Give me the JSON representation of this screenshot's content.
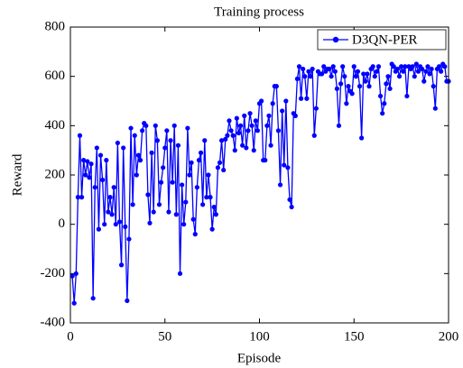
{
  "chart_data": {
    "type": "line",
    "title": "Training process",
    "xlabel": "Episode",
    "ylabel": "Reward",
    "x": [
      1,
      2,
      3,
      4,
      5,
      6,
      7,
      8,
      9,
      10,
      11,
      12,
      13,
      14,
      15,
      16,
      17,
      18,
      19,
      20,
      21,
      22,
      23,
      24,
      25,
      26,
      27,
      28,
      29,
      30,
      31,
      32,
      33,
      34,
      35,
      36,
      37,
      38,
      39,
      40,
      41,
      42,
      43,
      44,
      45,
      46,
      47,
      48,
      49,
      50,
      51,
      52,
      53,
      54,
      55,
      56,
      57,
      58,
      59,
      60,
      61,
      62,
      63,
      64,
      65,
      66,
      67,
      68,
      69,
      70,
      71,
      72,
      73,
      74,
      75,
      76,
      77,
      78,
      79,
      80,
      81,
      82,
      83,
      84,
      85,
      86,
      87,
      88,
      89,
      90,
      91,
      92,
      93,
      94,
      95,
      96,
      97,
      98,
      99,
      100,
      101,
      102,
      103,
      104,
      105,
      106,
      107,
      108,
      109,
      110,
      111,
      112,
      113,
      114,
      115,
      116,
      117,
      118,
      119,
      120,
      121,
      122,
      123,
      124,
      125,
      126,
      127,
      128,
      129,
      130,
      131,
      132,
      133,
      134,
      135,
      136,
      137,
      138,
      139,
      140,
      141,
      142,
      143,
      144,
      145,
      146,
      147,
      148,
      149,
      150,
      151,
      152,
      153,
      154,
      155,
      156,
      157,
      158,
      159,
      160,
      161,
      162,
      163,
      164,
      165,
      166,
      167,
      168,
      169,
      170,
      171,
      172,
      173,
      174,
      175,
      176,
      177,
      178,
      179,
      180,
      181,
      182,
      183,
      184,
      185,
      186,
      187,
      188,
      189,
      190,
      191,
      192,
      193,
      194,
      195,
      196,
      197,
      198,
      199,
      200
    ],
    "series": [
      {
        "name": "D3QN-PER",
        "color": "#0000ff",
        "values": [
          -210,
          -320,
          -200,
          110,
          360,
          110,
          260,
          200,
          255,
          190,
          245,
          -300,
          150,
          310,
          -20,
          280,
          180,
          0,
          260,
          50,
          110,
          40,
          150,
          0,
          330,
          10,
          -165,
          310,
          -10,
          -310,
          -60,
          390,
          80,
          360,
          200,
          280,
          260,
          380,
          410,
          400,
          120,
          5,
          290,
          50,
          400,
          340,
          80,
          170,
          230,
          310,
          380,
          50,
          340,
          170,
          400,
          40,
          320,
          -200,
          160,
          0,
          90,
          390,
          200,
          250,
          20,
          -40,
          150,
          260,
          290,
          80,
          340,
          110,
          200,
          110,
          -20,
          70,
          40,
          230,
          250,
          340,
          220,
          345,
          360,
          420,
          380,
          360,
          300,
          430,
          370,
          400,
          320,
          440,
          310,
          380,
          450,
          400,
          300,
          420,
          380,
          490,
          500,
          260,
          260,
          400,
          440,
          320,
          490,
          560,
          560,
          380,
          160,
          460,
          240,
          500,
          230,
          100,
          70,
          450,
          440,
          590,
          640,
          510,
          630,
          600,
          510,
          620,
          600,
          630,
          360,
          470,
          620,
          610,
          610,
          640,
          620,
          630,
          630,
          600,
          640,
          620,
          550,
          400,
          570,
          640,
          600,
          490,
          560,
          540,
          530,
          640,
          600,
          620,
          560,
          350,
          610,
          580,
          610,
          560,
          630,
          640,
          600,
          620,
          640,
          520,
          450,
          490,
          570,
          600,
          550,
          650,
          640,
          620,
          630,
          600,
          640,
          620,
          640,
          520,
          640,
          630,
          640,
          600,
          650,
          620,
          640,
          630,
          580,
          620,
          640,
          610,
          630,
          560,
          470,
          630,
          640,
          620,
          650,
          640,
          580,
          580
        ]
      }
    ],
    "xlim": [
      0,
      200
    ],
    "xticks": [
      0,
      50,
      100,
      150,
      200
    ],
    "ylim": [
      -400,
      800
    ],
    "yticks": [
      -400,
      -200,
      0,
      200,
      400,
      600,
      800
    ],
    "legend": "upper right"
  }
}
